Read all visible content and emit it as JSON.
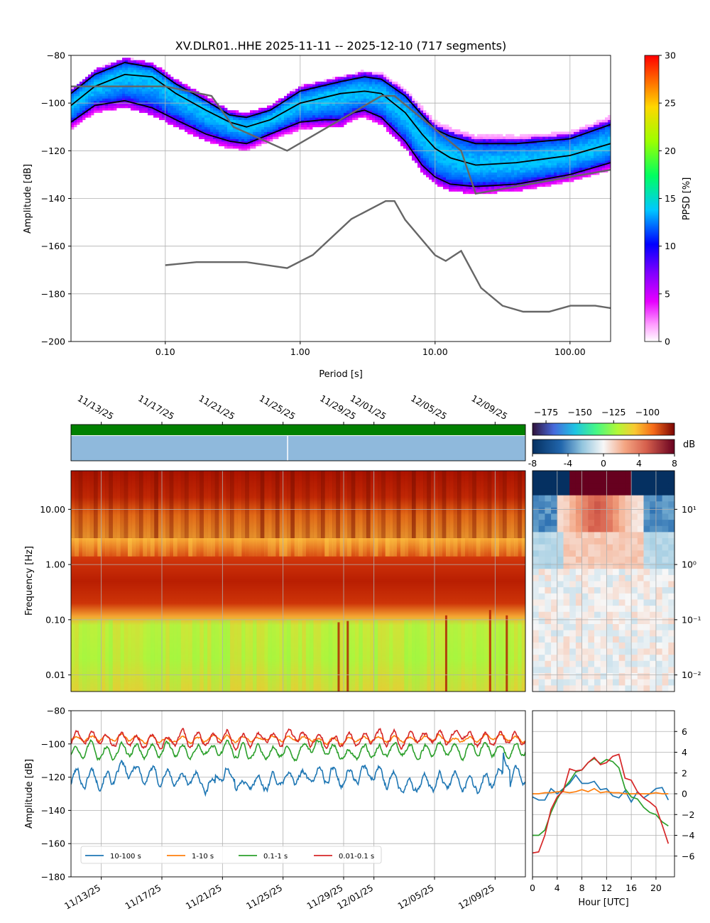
{
  "chart_data": [
    {
      "id": "ppsd",
      "type": "heatmap",
      "title": "XV.DLR01..HHE   2025-11-11 -- 2025-12-10  (717 segments)",
      "xlabel": "Period [s]",
      "ylabel": "Amplitude [dB]",
      "xscale": "log",
      "xlim": [
        0.02,
        200
      ],
      "ylim": [
        -200,
        -80
      ],
      "xticks": [
        {
          "v": 0.1,
          "label": "0.10"
        },
        {
          "v": 1,
          "label": "1.00"
        },
        {
          "v": 10,
          "label": "10.00"
        },
        {
          "v": 100,
          "label": "100.00"
        }
      ],
      "yticks": [
        {
          "v": -80,
          "label": "−80"
        },
        {
          "v": -100,
          "label": "−100"
        },
        {
          "v": -120,
          "label": "−120"
        },
        {
          "v": -140,
          "label": "−140"
        },
        {
          "v": -160,
          "label": "−160"
        },
        {
          "v": -180,
          "label": "−180"
        },
        {
          "v": -200,
          "label": "−200"
        }
      ],
      "colorbar": {
        "label": "PPSD [%]",
        "range": [
          0,
          30
        ],
        "ticks": [
          {
            "v": 0,
            "label": "0"
          },
          {
            "v": 5,
            "label": "5"
          },
          {
            "v": 10,
            "label": "10"
          },
          {
            "v": 15,
            "label": "15"
          },
          {
            "v": 20,
            "label": "20"
          },
          {
            "v": 25,
            "label": "25"
          },
          {
            "v": 30,
            "label": "30"
          }
        ]
      },
      "percentile_curves": [
        {
          "name": "high percentile",
          "points": [
            [
              0.02,
              -96
            ],
            [
              0.03,
              -88
            ],
            [
              0.05,
              -83
            ],
            [
              0.08,
              -85
            ],
            [
              0.12,
              -92
            ],
            [
              0.2,
              -99
            ],
            [
              0.3,
              -105
            ],
            [
              0.4,
              -106
            ],
            [
              0.6,
              -103
            ],
            [
              1,
              -95
            ],
            [
              2,
              -91
            ],
            [
              3,
              -89
            ],
            [
              4,
              -90
            ],
            [
              6,
              -97
            ],
            [
              8,
              -105
            ],
            [
              10,
              -111
            ],
            [
              13,
              -114
            ],
            [
              20,
              -117
            ],
            [
              40,
              -117
            ],
            [
              100,
              -115
            ],
            [
              200,
              -109
            ]
          ]
        },
        {
          "name": "mode",
          "points": [
            [
              0.02,
              -101
            ],
            [
              0.03,
              -93
            ],
            [
              0.05,
              -88
            ],
            [
              0.08,
              -89
            ],
            [
              0.12,
              -96
            ],
            [
              0.2,
              -103
            ],
            [
              0.3,
              -108
            ],
            [
              0.4,
              -110
            ],
            [
              0.6,
              -107
            ],
            [
              1,
              -100
            ],
            [
              2,
              -96
            ],
            [
              3,
              -95
            ],
            [
              4,
              -96
            ],
            [
              6,
              -104
            ],
            [
              8,
              -113
            ],
            [
              10,
              -119
            ],
            [
              13,
              -123
            ],
            [
              20,
              -126
            ],
            [
              40,
              -125
            ],
            [
              100,
              -122
            ],
            [
              200,
              -117
            ]
          ]
        },
        {
          "name": "low percentile",
          "points": [
            [
              0.02,
              -108
            ],
            [
              0.03,
              -101
            ],
            [
              0.05,
              -99
            ],
            [
              0.08,
              -102
            ],
            [
              0.12,
              -107
            ],
            [
              0.2,
              -113
            ],
            [
              0.3,
              -116
            ],
            [
              0.4,
              -117
            ],
            [
              0.6,
              -113
            ],
            [
              1,
              -108
            ],
            [
              1.5,
              -107
            ],
            [
              2,
              -107
            ],
            [
              2.5,
              -104
            ],
            [
              3,
              -103
            ],
            [
              4,
              -106
            ],
            [
              6,
              -116
            ],
            [
              8,
              -126
            ],
            [
              10,
              -131
            ],
            [
              13,
              -134
            ],
            [
              20,
              -135
            ],
            [
              40,
              -134
            ],
            [
              100,
              -130
            ],
            [
              200,
              -125
            ]
          ]
        }
      ],
      "noise_models": [
        {
          "name": "NHNM",
          "points": [
            [
              0.02,
              -93
            ],
            [
              0.1,
              -93
            ],
            [
              0.22,
              -97
            ],
            [
              0.32,
              -110
            ],
            [
              0.8,
              -120
            ],
            [
              4,
              -97
            ],
            [
              5,
              -97
            ],
            [
              15.6,
              -120
            ],
            [
              20,
              -138
            ],
            [
              200,
              -128
            ]
          ]
        },
        {
          "name": "NLNM",
          "points": [
            [
              0.1,
              -168
            ],
            [
              0.17,
              -166.7
            ],
            [
              0.4,
              -166.7
            ],
            [
              0.8,
              -169.2
            ],
            [
              1.24,
              -163.7
            ],
            [
              2.4,
              -148.6
            ],
            [
              4.3,
              -141.1
            ],
            [
              5,
              -141.1
            ],
            [
              6,
              -149
            ],
            [
              10,
              -163.8
            ],
            [
              12,
              -166.2
            ],
            [
              15.6,
              -162
            ],
            [
              21.9,
              -177.5
            ],
            [
              31.6,
              -185
            ],
            [
              45,
              -187.5
            ],
            [
              70,
              -187.5
            ],
            [
              101,
              -185
            ],
            [
              154,
              -185
            ],
            [
              200,
              -186
            ]
          ]
        }
      ]
    },
    {
      "id": "spectrogram",
      "type": "heatmap",
      "ylabel": "Frequency [Hz]",
      "yscale": "log",
      "ylim": [
        0.005,
        50
      ],
      "yticks": [
        {
          "v": 0.01,
          "label": "0.01"
        },
        {
          "v": 0.1,
          "label": "0.10"
        },
        {
          "v": 1,
          "label": "1.00"
        },
        {
          "v": 10,
          "label": "10.00"
        }
      ],
      "date_ticks": [
        {
          "day": 2,
          "label": "11/13/25"
        },
        {
          "day": 6,
          "label": "11/17/25"
        },
        {
          "day": 10,
          "label": "11/21/25"
        },
        {
          "day": 14,
          "label": "11/25/25"
        },
        {
          "day": 18,
          "label": "11/29/25"
        },
        {
          "day": 20,
          "label": "12/01/25"
        },
        {
          "day": 24,
          "label": "12/05/25"
        },
        {
          "day": 28,
          "label": "12/09/25"
        }
      ],
      "time_range_days": [
        0,
        30
      ],
      "colorbar": {
        "range": [
          -185,
          -80
        ],
        "ticks": [
          {
            "v": -175,
            "label": "−175"
          },
          {
            "v": -150,
            "label": "−150"
          },
          {
            "v": -125,
            "label": "−125"
          },
          {
            "v": -100,
            "label": "−100"
          }
        ]
      },
      "data_availability_gap_day": 14.3
    },
    {
      "id": "hourly-anomaly",
      "type": "heatmap",
      "yticks": [
        {
          "v": 0.01,
          "label": "10⁻²"
        },
        {
          "v": 0.1,
          "label": "10⁻¹"
        },
        {
          "v": 1,
          "label": "10⁰"
        },
        {
          "v": 10,
          "label": "10¹"
        }
      ],
      "colorbar": {
        "label": "dB",
        "range": [
          -8,
          8
        ],
        "ticks": [
          {
            "v": -8,
            "label": "-8"
          },
          {
            "v": -4,
            "label": "-4"
          },
          {
            "v": 0,
            "label": "0"
          },
          {
            "v": 4,
            "label": "4"
          },
          {
            "v": 8,
            "label": "8"
          }
        ]
      }
    },
    {
      "id": "band-timeseries",
      "type": "line",
      "ylabel": "Amplitude [dB]",
      "ylim": [
        -180,
        -80
      ],
      "yticks": [
        {
          "v": -80,
          "label": "−80"
        },
        {
          "v": -100,
          "label": "−100"
        },
        {
          "v": -120,
          "label": "−120"
        },
        {
          "v": -140,
          "label": "−140"
        },
        {
          "v": -160,
          "label": "−160"
        },
        {
          "v": -180,
          "label": "−180"
        }
      ],
      "series": [
        {
          "name": "10-100 s",
          "color": "#1f77b4",
          "mean": -121,
          "amp": 4.5,
          "noise": 3
        },
        {
          "name": "1-10 s",
          "color": "#ff7f0e",
          "mean": -97,
          "amp": 1.5,
          "noise": 1
        },
        {
          "name": "0.1-1 s",
          "color": "#2ca02c",
          "mean": -104,
          "amp": 3.5,
          "noise": 2
        },
        {
          "name": "0.01-0.1 s",
          "color": "#d62728",
          "mean": -97,
          "amp": 3.5,
          "noise": 2
        }
      ]
    },
    {
      "id": "hourly-band",
      "type": "line",
      "xlabel": "Hour [UTC]",
      "xlim": [
        0,
        23
      ],
      "ylim": [
        -8,
        8
      ],
      "xticks": [
        {
          "v": 0,
          "label": "0"
        },
        {
          "v": 4,
          "label": "4"
        },
        {
          "v": 8,
          "label": "8"
        },
        {
          "v": 12,
          "label": "12"
        },
        {
          "v": 16,
          "label": "16"
        },
        {
          "v": 20,
          "label": "20"
        }
      ],
      "yticks": [
        {
          "v": 6,
          "label": "6"
        },
        {
          "v": 4,
          "label": "4"
        },
        {
          "v": 2,
          "label": "2"
        },
        {
          "v": 0,
          "label": "0"
        },
        {
          "v": -2,
          "label": "−2"
        },
        {
          "v": -4,
          "label": "−4"
        },
        {
          "v": -6,
          "label": "−6"
        }
      ],
      "hours": [
        0,
        1,
        2,
        3,
        4,
        5,
        6,
        7,
        8,
        9,
        10,
        11,
        12,
        13,
        14,
        15,
        16,
        17,
        18,
        19,
        20,
        21,
        22
      ],
      "series": [
        {
          "name": "10-100 s",
          "color": "#1f77b4",
          "values": [
            -0.3,
            -0.6,
            -0.6,
            0.5,
            0,
            0.5,
            1,
            1.8,
            1,
            1,
            1.2,
            0.4,
            0.5,
            -0.2,
            -0.4,
            0.3,
            -0.8,
            0.2,
            -0.4,
            0,
            0.5,
            0.6,
            -0.6
          ]
        },
        {
          "name": "1-10 s",
          "color": "#ff7f0e",
          "values": [
            0,
            0,
            0.1,
            0.1,
            0.2,
            0.2,
            0.1,
            0.2,
            0.4,
            0.2,
            0.5,
            0.1,
            0.2,
            0.1,
            0.1,
            0,
            0,
            0,
            0,
            0,
            0.1,
            0,
            0
          ]
        },
        {
          "name": "0.1-1 s",
          "color": "#2ca02c",
          "values": [
            -4,
            -4,
            -3.5,
            -1.8,
            -0.5,
            0.5,
            1.2,
            2.1,
            2.3,
            3.0,
            3.4,
            2.9,
            3.3,
            3.1,
            2.5,
            0.5,
            -0.3,
            -0.5,
            -1.3,
            -1.8,
            -2.0,
            -2.7,
            -3.1
          ]
        },
        {
          "name": "0.01-0.1 s",
          "color": "#d62728",
          "values": [
            -5.7,
            -5.6,
            -4.0,
            -1.5,
            -0.3,
            0.3,
            2.4,
            2.2,
            2.3,
            3.0,
            3.5,
            2.8,
            3.0,
            3.6,
            3.8,
            1.5,
            1.3,
            0.2,
            -0.4,
            -0.8,
            -1.3,
            -3.0,
            -4.8
          ]
        }
      ]
    }
  ]
}
